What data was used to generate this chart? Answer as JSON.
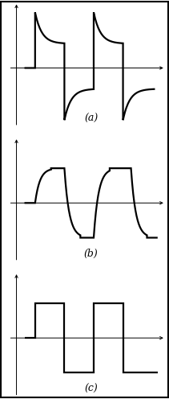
{
  "figure_size": [
    2.11,
    4.96
  ],
  "dpi": 100,
  "background_color": "#ffffff",
  "subplots": [
    {
      "label": "(a)",
      "type": "overcompensated",
      "line_color": "#000000",
      "line_width": 1.6
    },
    {
      "label": "(b)",
      "type": "undercompensated",
      "line_color": "#000000",
      "line_width": 1.6
    },
    {
      "label": "(c)",
      "type": "proper",
      "line_color": "#000000",
      "line_width": 1.6
    }
  ],
  "axis_color": "#000000",
  "axis_linewidth": 0.7,
  "label_fontsize": 9,
  "ylim": [
    -1.7,
    1.9
  ],
  "xlim": [
    -0.3,
    5.6
  ]
}
